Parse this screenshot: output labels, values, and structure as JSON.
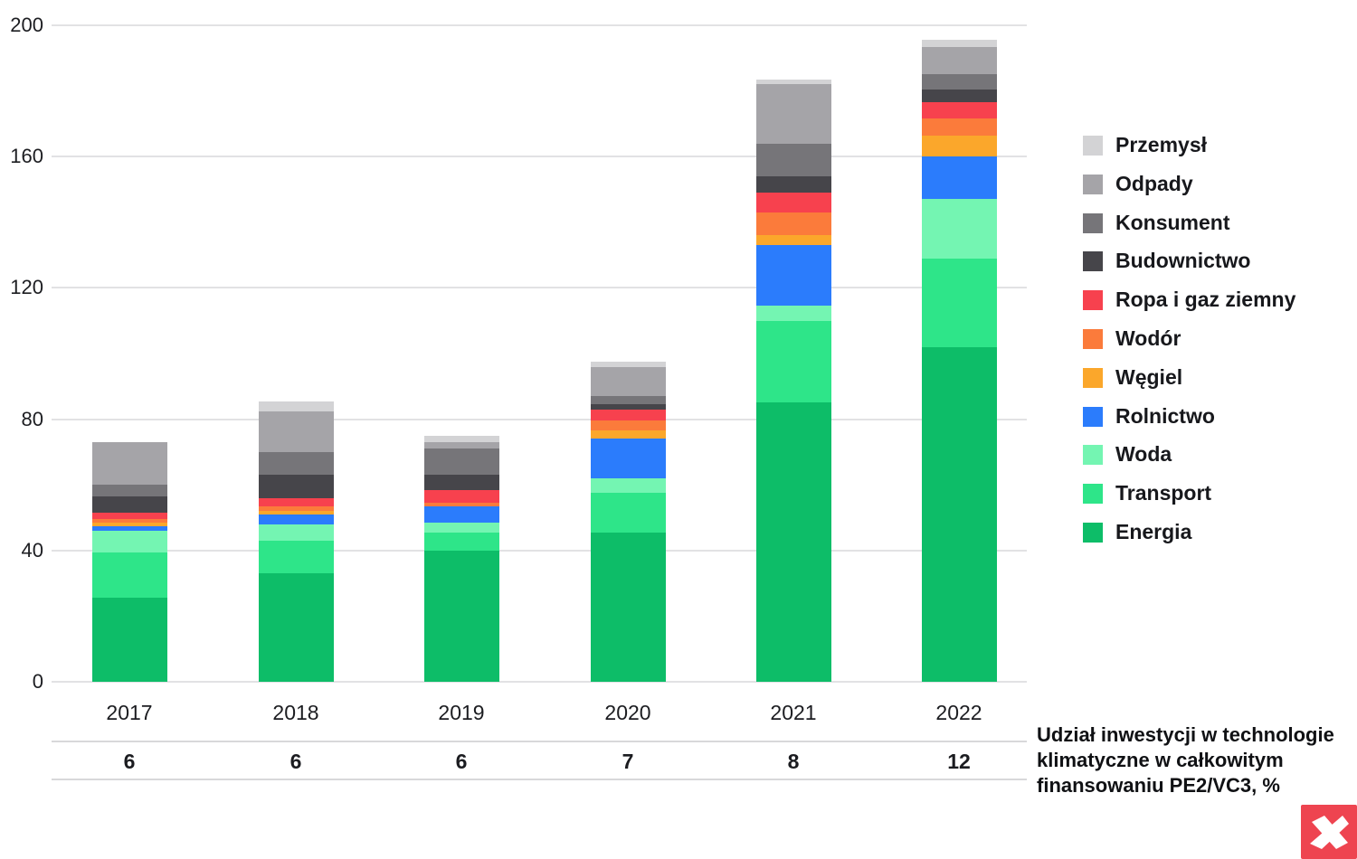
{
  "chart_data": {
    "type": "bar",
    "stacked": true,
    "title": "",
    "xlabel": "",
    "ylabel": "",
    "ylim": [
      0,
      200
    ],
    "yticks": [
      0,
      40,
      80,
      120,
      160,
      200
    ],
    "grid": true,
    "legend_position": "right",
    "categories": [
      "2017",
      "2018",
      "2019",
      "2020",
      "2021",
      "2022"
    ],
    "series": [
      {
        "name": "Energia",
        "color": "#0dbd68",
        "values": [
          25.5,
          33,
          40,
          45.5,
          85,
          102
        ]
      },
      {
        "name": "Transport",
        "color": "#2ee589",
        "values": [
          14,
          10,
          5.5,
          12,
          25,
          27
        ]
      },
      {
        "name": "Woda",
        "color": "#74f5b2",
        "values": [
          6.5,
          5,
          3,
          4.5,
          4.5,
          18
        ]
      },
      {
        "name": "Rolnictwo",
        "color": "#2b7cfc",
        "values": [
          1.5,
          3,
          5,
          12,
          18.5,
          13
        ]
      },
      {
        "name": "Węgiel",
        "color": "#fba72b",
        "values": [
          1,
          1,
          0,
          2.5,
          3,
          6.5
        ]
      },
      {
        "name": "Wodór",
        "color": "#fb7b3b",
        "values": [
          1,
          1.5,
          1,
          3,
          7,
          5
        ]
      },
      {
        "name": "Ropa i gaz ziemny",
        "color": "#f7414e",
        "values": [
          2,
          2.5,
          4,
          3.5,
          6,
          5
        ]
      },
      {
        "name": "Budownictwo",
        "color": "#46454a",
        "values": [
          5,
          7,
          4.5,
          1.5,
          5,
          4
        ]
      },
      {
        "name": "Konsument",
        "color": "#767579",
        "values": [
          3.5,
          7,
          8,
          2.5,
          10,
          4.5
        ]
      },
      {
        "name": "Odpady",
        "color": "#a5a4a8",
        "values": [
          13,
          12.5,
          2,
          9,
          18,
          8.5
        ]
      },
      {
        "name": "Przemysł",
        "color": "#d3d3d5",
        "values": [
          0,
          3,
          2,
          1.5,
          1.5,
          2
        ]
      }
    ],
    "legend_order_top_to_bottom": [
      "Przemysł",
      "Odpady",
      "Konsument",
      "Budownictwo",
      "Ropa i gaz ziemny",
      "Wodór",
      "Węgiel",
      "Rolnictwo",
      "Woda",
      "Transport",
      "Energia"
    ],
    "secondary_row": {
      "label": "Udział inwestycji w technologie klimatyczne w całkowitym finansowaniu PE2/VC3, %",
      "values": [
        "6",
        "6",
        "6",
        "7",
        "8",
        "12"
      ]
    }
  },
  "branding": {
    "logo_name": "xtb-logo",
    "logo_color": "#ee4450"
  }
}
